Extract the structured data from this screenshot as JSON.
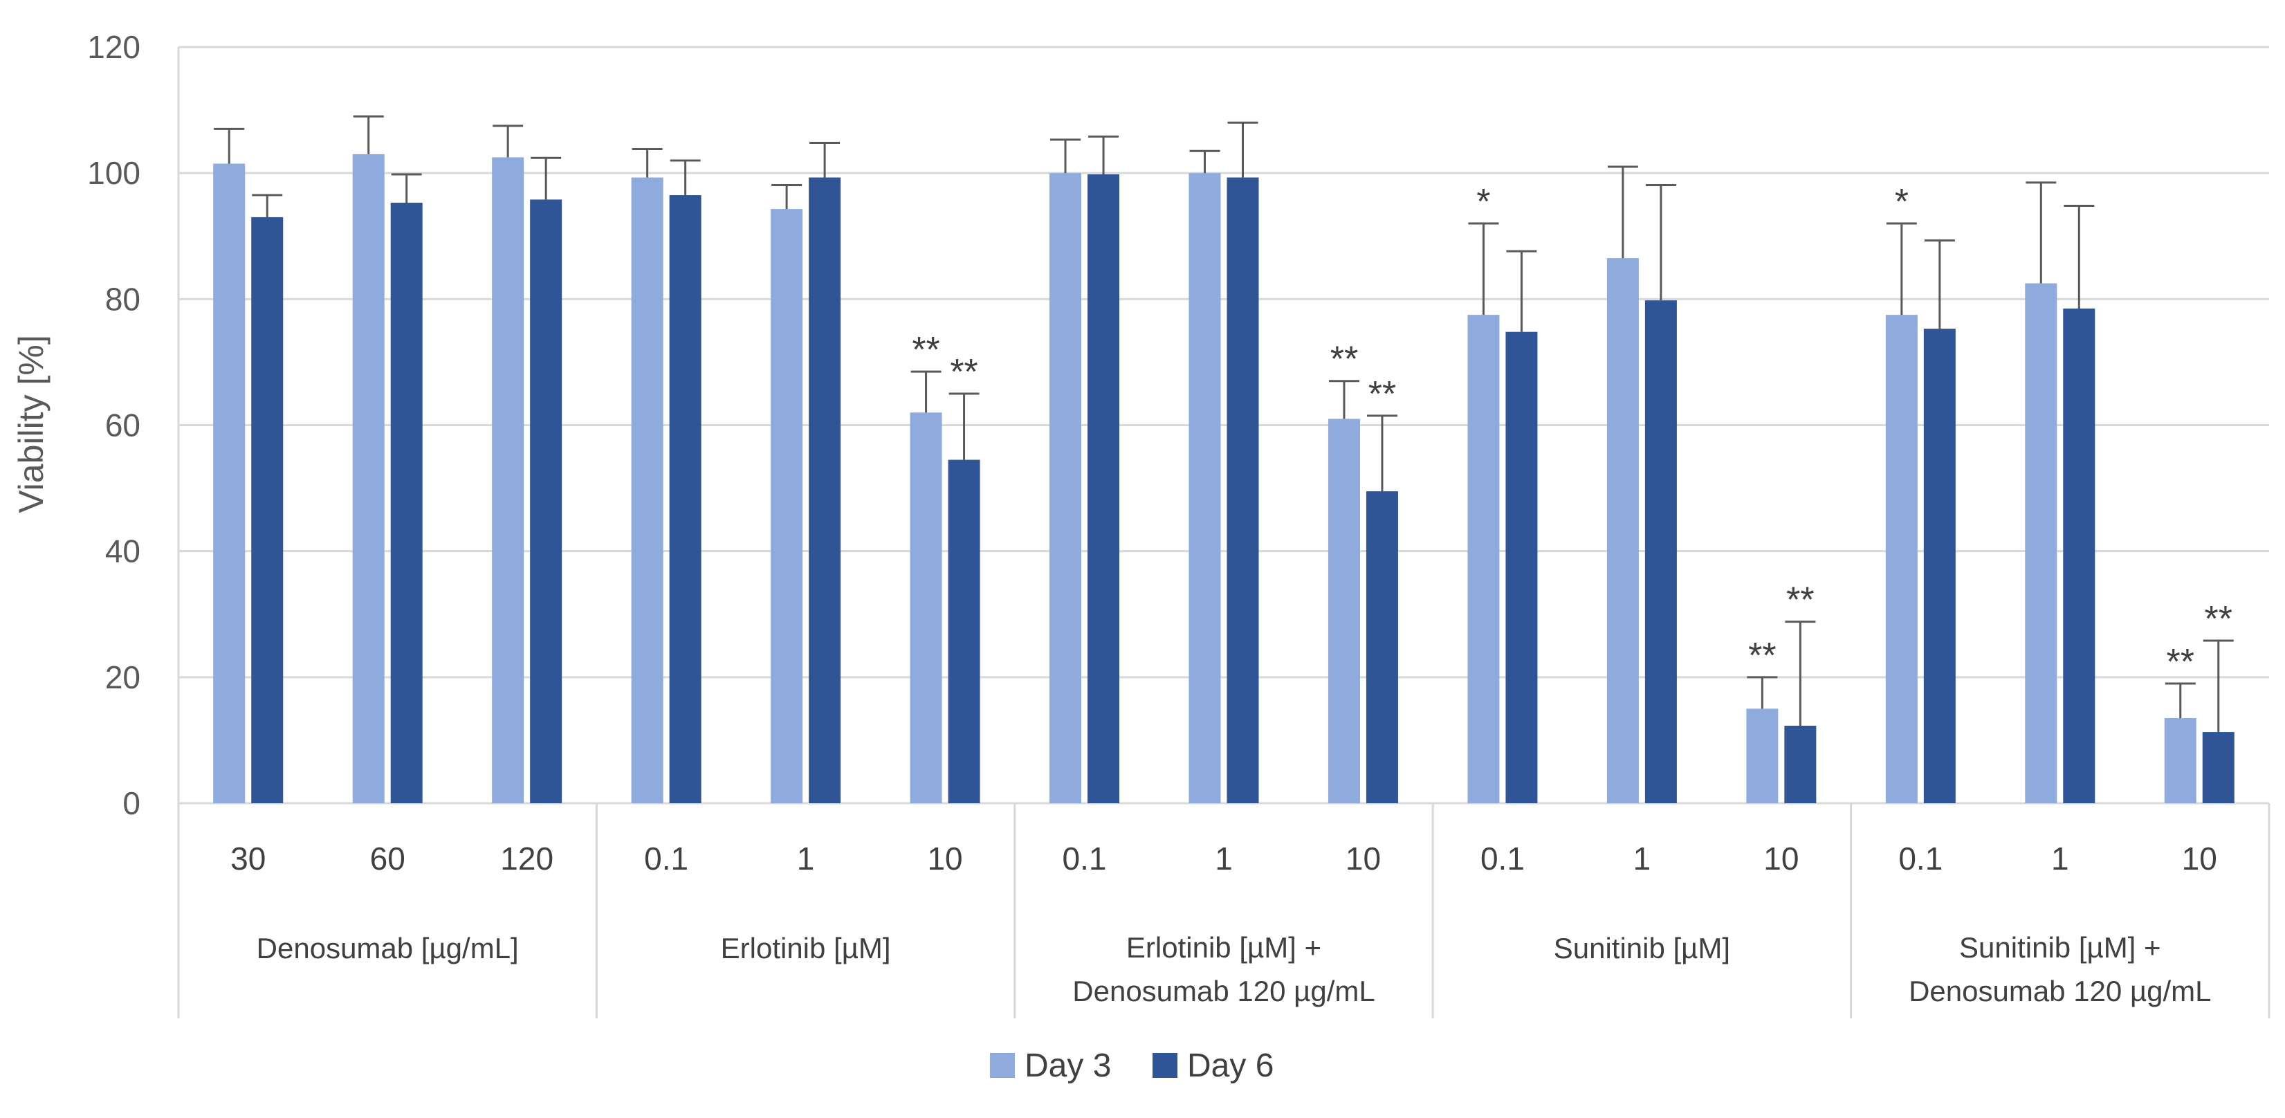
{
  "chart_data": {
    "type": "bar",
    "title": "",
    "xlabel": "",
    "ylabel": "Viability  [%]",
    "ylim": [
      0,
      120
    ],
    "yticks": [
      0,
      20,
      40,
      60,
      80,
      100,
      120
    ],
    "grid": true,
    "legend_position": "bottom-center",
    "groups": [
      {
        "label_lines": [
          "Denosumab [µg/mL]"
        ],
        "categories": [
          "30",
          "60",
          "120"
        ]
      },
      {
        "label_lines": [
          "Erlotinib [µM]"
        ],
        "categories": [
          "0.1",
          "1",
          "10"
        ]
      },
      {
        "label_lines": [
          "Erlotinib [µM] +",
          "Denosumab 120 µg/mL"
        ],
        "categories": [
          "0.1",
          "1",
          "10"
        ]
      },
      {
        "label_lines": [
          "Sunitinib [µM]"
        ],
        "categories": [
          "0.1",
          "1",
          "10"
        ]
      },
      {
        "label_lines": [
          "Sunitinib [µM] +",
          "Denosumab 120 µg/mL"
        ],
        "categories": [
          "0.1",
          "1",
          "10"
        ]
      }
    ],
    "series": [
      {
        "name": "Day 3",
        "color": "#8faadc",
        "values": [
          101.5,
          103,
          102.5,
          99.3,
          94.3,
          62,
          100,
          100,
          61,
          77.5,
          86.5,
          15,
          77.5,
          82.5,
          13.5
        ],
        "errors": [
          5.5,
          6,
          5,
          4.5,
          3.8,
          6.5,
          5.3,
          3.5,
          6,
          14.5,
          14.5,
          5,
          14.5,
          16,
          5.5
        ],
        "significance": [
          "",
          "",
          "",
          "",
          "",
          "**",
          "",
          "",
          "**",
          "*",
          "",
          "**",
          "*",
          "",
          "**"
        ]
      },
      {
        "name": "Day 6",
        "color": "#2f5597",
        "values": [
          93,
          95.3,
          95.8,
          96.5,
          99.3,
          54.5,
          99.8,
          99.3,
          49.5,
          74.8,
          79.8,
          12.3,
          75.3,
          78.5,
          11.3
        ],
        "errors": [
          3.5,
          4.5,
          6.6,
          5.5,
          5.5,
          10.5,
          6,
          8.7,
          12,
          12.8,
          18.3,
          16.5,
          14,
          16.3,
          14.5
        ],
        "significance": [
          "",
          "",
          "",
          "",
          "",
          "**",
          "",
          "",
          "**",
          "",
          "",
          "**",
          "",
          "",
          "**"
        ]
      }
    ]
  }
}
